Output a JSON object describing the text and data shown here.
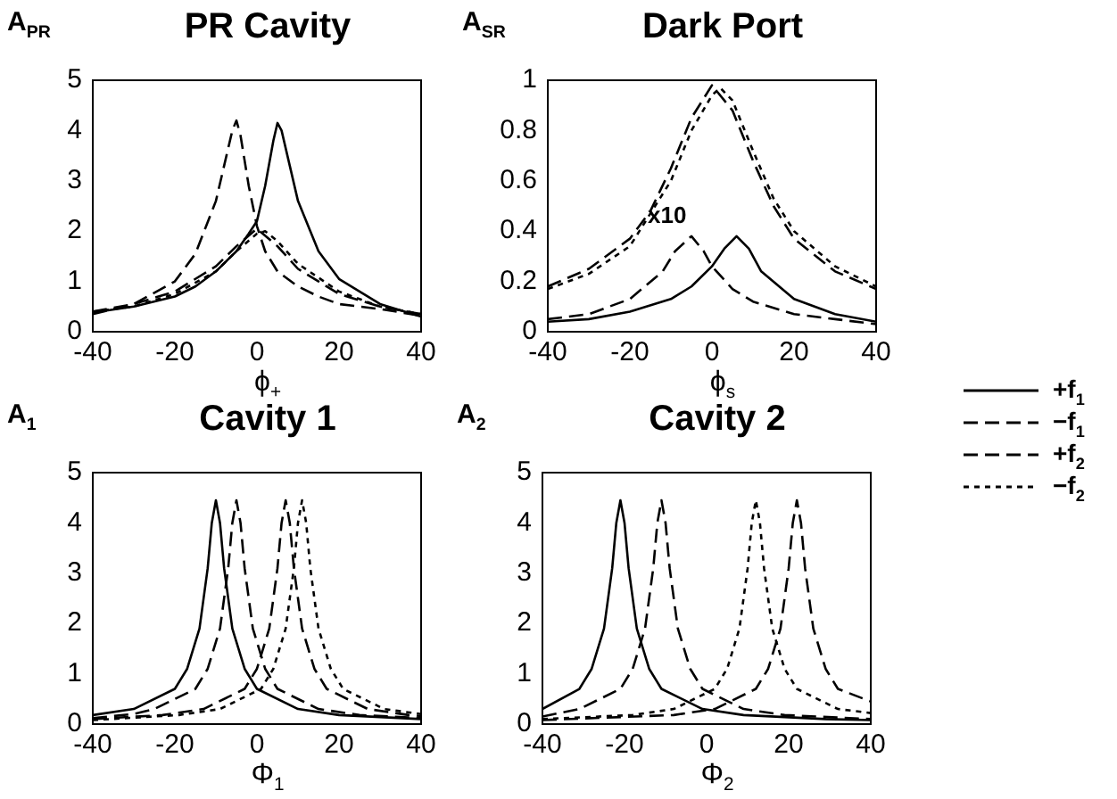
{
  "chart_data": [
    {
      "type": "line",
      "title": "PR Cavity",
      "ylabel": "A$_{PR}$",
      "xlabel": "ϕ$_{+}$",
      "xlim": [
        -40,
        40
      ],
      "xticks": [
        -40,
        -20,
        0,
        20,
        40
      ],
      "ylim": [
        0,
        5
      ],
      "yticks": [
        0,
        1,
        2,
        3,
        4,
        5
      ],
      "grid": false,
      "marker": "none",
      "series": [
        {
          "color": "#000000",
          "line_style": "solid",
          "x": [
            -40,
            -30,
            -20,
            -15,
            -10,
            -5,
            -2,
            0,
            2,
            4,
            5,
            6,
            8,
            10,
            15,
            20,
            30,
            40
          ],
          "values": [
            0.38,
            0.5,
            0.7,
            0.9,
            1.2,
            1.6,
            1.95,
            2.2,
            2.9,
            3.8,
            4.15,
            4.0,
            3.3,
            2.6,
            1.6,
            1.05,
            0.55,
            0.3
          ]
        },
        {
          "color": "#000000",
          "line_style": "dashed",
          "x": [
            -40,
            -30,
            -20,
            -15,
            -10,
            -8,
            -6,
            -5,
            -4,
            -2,
            0,
            2,
            5,
            10,
            15,
            20,
            30,
            40
          ],
          "values": [
            0.35,
            0.55,
            1.0,
            1.55,
            2.6,
            3.3,
            4.0,
            4.2,
            3.9,
            2.9,
            2.1,
            1.6,
            1.2,
            0.9,
            0.7,
            0.55,
            0.45,
            0.32
          ]
        },
        {
          "color": "#000000",
          "line_style": "dashed",
          "x": [
            -40,
            -30,
            -20,
            -10,
            -5,
            0,
            5,
            10,
            20,
            30,
            40
          ],
          "values": [
            0.4,
            0.55,
            0.8,
            1.3,
            1.7,
            2.05,
            1.7,
            1.25,
            0.75,
            0.5,
            0.35
          ]
        },
        {
          "color": "#000000",
          "line_style": "dotted",
          "x": [
            -40,
            -30,
            -20,
            -10,
            -5,
            0,
            2,
            5,
            10,
            20,
            30,
            40
          ],
          "values": [
            0.4,
            0.5,
            0.75,
            1.2,
            1.6,
            1.95,
            2.0,
            1.8,
            1.35,
            0.8,
            0.5,
            0.35
          ]
        }
      ]
    },
    {
      "type": "line",
      "title": "Dark Port",
      "ylabel": "A$_{SR}$",
      "xlabel": "ϕ$_{s}$",
      "xlim": [
        -40,
        40
      ],
      "xticks": [
        -40,
        -20,
        0,
        20,
        40
      ],
      "ylim": [
        0,
        1
      ],
      "yticks": [
        0,
        0.2,
        0.4,
        0.6,
        0.8,
        1
      ],
      "grid": false,
      "marker": "none",
      "legend": "right",
      "annotations": [
        "x10"
      ],
      "series": [
        {
          "name": "+f$_{1}$",
          "color": "#000000",
          "line_style": "solid",
          "x": [
            -40,
            -30,
            -20,
            -10,
            -5,
            0,
            3,
            6,
            9,
            12,
            20,
            30,
            40
          ],
          "values": [
            0.04,
            0.05,
            0.08,
            0.13,
            0.18,
            0.26,
            0.33,
            0.38,
            0.33,
            0.24,
            0.13,
            0.07,
            0.04
          ]
        },
        {
          "name": "−f$_{1}$",
          "color": "#000000",
          "line_style": "dashed",
          "x": [
            -40,
            -30,
            -20,
            -12,
            -9,
            -5,
            -2,
            0,
            5,
            10,
            20,
            30,
            40
          ],
          "values": [
            0.05,
            0.07,
            0.13,
            0.24,
            0.32,
            0.38,
            0.32,
            0.26,
            0.17,
            0.12,
            0.07,
            0.05,
            0.03
          ]
        },
        {
          "name": "+f$_{2}$",
          "color": "#000000",
          "line_style": "dashed",
          "x": [
            -40,
            -30,
            -20,
            -15,
            -10,
            -5,
            0,
            5,
            10,
            15,
            20,
            30,
            40
          ],
          "values": [
            0.18,
            0.25,
            0.37,
            0.48,
            0.65,
            0.85,
            0.98,
            0.88,
            0.68,
            0.5,
            0.37,
            0.24,
            0.17
          ]
        },
        {
          "name": "−f$_{2}$",
          "color": "#000000",
          "line_style": "dotted",
          "x": [
            -40,
            -30,
            -20,
            -10,
            -5,
            0,
            2,
            5,
            10,
            15,
            20,
            30,
            40
          ],
          "values": [
            0.17,
            0.23,
            0.34,
            0.6,
            0.8,
            0.94,
            0.97,
            0.92,
            0.72,
            0.53,
            0.4,
            0.26,
            0.18
          ]
        }
      ]
    },
    {
      "type": "line",
      "title": "Cavity 1",
      "ylabel": "A$_{1}$",
      "xlabel": "Φ$_{1}$",
      "xlim": [
        -40,
        40
      ],
      "xticks": [
        -40,
        -20,
        0,
        20,
        40
      ],
      "ylim": [
        0,
        5
      ],
      "yticks": [
        0,
        1,
        2,
        3,
        4,
        5
      ],
      "grid": false,
      "marker": "none",
      "series": [
        {
          "color": "#000000",
          "line_style": "solid",
          "x": [
            -40,
            -30,
            -20,
            -17,
            -14,
            -12,
            -11,
            -10,
            -9,
            -8,
            -6,
            -3,
            0,
            10,
            20,
            40
          ],
          "values": [
            0.18,
            0.3,
            0.7,
            1.1,
            1.9,
            3.1,
            4.0,
            4.45,
            4.0,
            3.1,
            1.9,
            1.1,
            0.7,
            0.3,
            0.18,
            0.1
          ]
        },
        {
          "color": "#000000",
          "line_style": "dashed",
          "x": [
            -40,
            -30,
            -25,
            -15,
            -12,
            -9,
            -7,
            -6,
            -5,
            -4,
            -3,
            -1,
            2,
            5,
            15,
            25,
            40
          ],
          "values": [
            0.12,
            0.2,
            0.3,
            0.7,
            1.1,
            1.9,
            3.1,
            4.0,
            4.45,
            4.0,
            3.1,
            1.9,
            1.1,
            0.7,
            0.3,
            0.18,
            0.12
          ]
        },
        {
          "color": "#000000",
          "line_style": "dashed",
          "x": [
            -40,
            -23,
            -13,
            -3,
            0,
            3,
            5,
            6,
            7,
            8,
            9,
            11,
            14,
            17,
            27,
            37,
            40
          ],
          "values": [
            0.1,
            0.18,
            0.3,
            0.7,
            1.1,
            1.9,
            3.1,
            4.0,
            4.45,
            4.0,
            3.1,
            1.9,
            1.1,
            0.7,
            0.3,
            0.18,
            0.16
          ]
        },
        {
          "color": "#000000",
          "line_style": "dotted",
          "x": [
            -40,
            -19,
            -9,
            1,
            4,
            7,
            9,
            10,
            11,
            12,
            13,
            15,
            18,
            21,
            31,
            40
          ],
          "values": [
            0.08,
            0.18,
            0.3,
            0.7,
            1.1,
            1.9,
            3.1,
            4.0,
            4.45,
            4.0,
            3.1,
            1.9,
            1.1,
            0.7,
            0.3,
            0.2
          ]
        }
      ]
    },
    {
      "type": "line",
      "title": "Cavity 2",
      "ylabel": "A$_{2}$",
      "xlabel": "Φ$_{2}$",
      "xlim": [
        -40,
        40
      ],
      "xticks": [
        -40,
        -20,
        0,
        20,
        40
      ],
      "ylim": [
        0,
        5
      ],
      "yticks": [
        0,
        1,
        2,
        3,
        4,
        5
      ],
      "grid": false,
      "marker": "none",
      "series": [
        {
          "color": "#000000",
          "line_style": "solid",
          "x": [
            -40,
            -31,
            -28,
            -25,
            -23,
            -22,
            -21,
            -20,
            -19,
            -17,
            -14,
            -11,
            -1,
            9,
            29,
            40
          ],
          "values": [
            0.3,
            0.7,
            1.1,
            1.9,
            3.1,
            4.0,
            4.45,
            4.0,
            3.1,
            1.9,
            1.1,
            0.7,
            0.3,
            0.18,
            0.1,
            0.08
          ]
        },
        {
          "color": "#000000",
          "line_style": "dashed",
          "x": [
            -40,
            -8,
            2,
            12,
            15,
            18,
            20,
            21,
            22,
            23,
            24,
            26,
            29,
            32,
            40
          ],
          "values": [
            0.08,
            0.18,
            0.3,
            0.7,
            1.1,
            1.9,
            3.1,
            4.0,
            4.45,
            4.0,
            3.1,
            1.9,
            1.1,
            0.7,
            0.45
          ]
        },
        {
          "color": "#000000",
          "line_style": "dashed",
          "x": [
            -40,
            -31,
            -21,
            -18,
            -15,
            -13,
            -12,
            -11,
            -10,
            -9,
            -7,
            -4,
            -1,
            9,
            19,
            40
          ],
          "values": [
            0.15,
            0.3,
            0.7,
            1.1,
            1.9,
            3.1,
            4.0,
            4.45,
            4.0,
            3.1,
            1.9,
            1.1,
            0.7,
            0.3,
            0.18,
            0.1
          ]
        },
        {
          "color": "#000000",
          "line_style": "dotted",
          "x": [
            -40,
            -18,
            -8,
            2,
            5,
            8,
            10,
            11,
            12,
            13,
            14,
            16,
            19,
            22,
            32,
            40
          ],
          "values": [
            0.1,
            0.18,
            0.3,
            0.7,
            1.1,
            1.9,
            3.1,
            4.0,
            4.45,
            4.0,
            3.1,
            1.9,
            1.1,
            0.7,
            0.3,
            0.22
          ]
        }
      ]
    }
  ]
}
